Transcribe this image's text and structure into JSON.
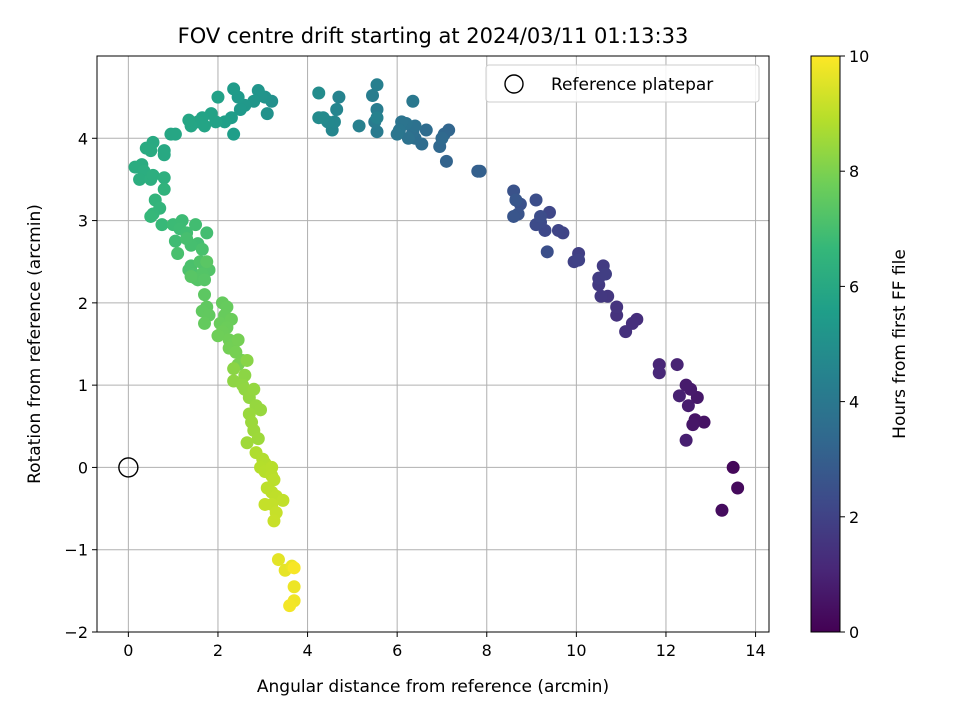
{
  "chart_data": {
    "type": "scatter",
    "title": "FOV centre drift starting at 2024/03/11 01:13:33",
    "xlabel": "Angular distance from reference (arcmin)",
    "ylabel": "Rotation from reference (arcmin)",
    "xlim": [
      -0.7,
      14.3
    ],
    "ylim": [
      -2.0,
      5.0
    ],
    "xticks": [
      0,
      2,
      4,
      6,
      8,
      10,
      12,
      14
    ],
    "yticks": [
      -2,
      -1,
      0,
      1,
      2,
      3,
      4
    ],
    "grid": true,
    "legend": {
      "position": "top-right",
      "entries": [
        "Reference platepar"
      ]
    },
    "reference_point": {
      "label": "Reference platepar",
      "x": 0,
      "y": 0
    },
    "colorbar": {
      "label": "Hours from first FF file",
      "min": 0,
      "max": 10,
      "ticks": [
        0,
        2,
        4,
        6,
        8,
        10
      ],
      "colormap": "viridis",
      "stops": [
        "#440154",
        "#482878",
        "#3e4989",
        "#31688e",
        "#26828e",
        "#1f9e89",
        "#35b779",
        "#6ece58",
        "#b5de2b",
        "#fde725"
      ]
    },
    "series": [
      {
        "points": [
          [
            13.5,
            0.0,
            0.2
          ],
          [
            13.6,
            -0.25,
            0.25
          ],
          [
            13.25,
            -0.52,
            0.3
          ],
          [
            12.85,
            0.55,
            0.5
          ],
          [
            12.65,
            0.58,
            0.55
          ],
          [
            12.6,
            0.52,
            0.6
          ],
          [
            12.7,
            0.85,
            0.65
          ],
          [
            12.55,
            0.95,
            0.7
          ],
          [
            12.45,
            1.0,
            0.75
          ],
          [
            12.5,
            0.75,
            0.8
          ],
          [
            12.45,
            0.33,
            0.85
          ],
          [
            12.3,
            0.87,
            0.9
          ],
          [
            12.25,
            1.25,
            1.0
          ],
          [
            11.85,
            1.25,
            1.05
          ],
          [
            11.85,
            1.15,
            1.1
          ],
          [
            11.35,
            1.8,
            1.3
          ],
          [
            11.25,
            1.75,
            1.35
          ],
          [
            11.1,
            1.65,
            1.4
          ],
          [
            10.9,
            1.85,
            1.45
          ],
          [
            10.9,
            1.95,
            1.5
          ],
          [
            10.7,
            2.08,
            1.6
          ],
          [
            10.55,
            2.08,
            1.65
          ],
          [
            10.5,
            2.22,
            1.7
          ],
          [
            10.6,
            2.45,
            1.75
          ],
          [
            10.5,
            2.3,
            1.8
          ],
          [
            10.65,
            2.35,
            1.85
          ],
          [
            10.05,
            2.6,
            1.9
          ],
          [
            9.95,
            2.5,
            1.95
          ],
          [
            10.05,
            2.52,
            2.0
          ],
          [
            9.7,
            2.85,
            2.05
          ],
          [
            9.6,
            2.88,
            2.1
          ],
          [
            9.4,
            3.1,
            2.15
          ],
          [
            9.3,
            2.88,
            2.2
          ],
          [
            9.2,
            2.98,
            2.25
          ],
          [
            9.1,
            2.95,
            2.3
          ],
          [
            9.2,
            3.05,
            2.35
          ],
          [
            9.1,
            3.25,
            2.4
          ],
          [
            9.35,
            2.62,
            2.45
          ],
          [
            8.75,
            3.2,
            2.5
          ],
          [
            8.6,
            3.36,
            2.55
          ],
          [
            8.7,
            3.08,
            2.6
          ],
          [
            8.6,
            3.05,
            2.65
          ],
          [
            8.65,
            3.25,
            2.7
          ],
          [
            7.8,
            3.6,
            3.0
          ],
          [
            7.85,
            3.6,
            3.05
          ],
          [
            7.1,
            3.72,
            3.2
          ],
          [
            7.15,
            4.1,
            3.25
          ],
          [
            7.05,
            4.05,
            3.3
          ],
          [
            6.95,
            3.9,
            3.35
          ],
          [
            7.0,
            4.0,
            3.4
          ],
          [
            6.65,
            4.1,
            3.5
          ],
          [
            6.55,
            3.93,
            3.55
          ],
          [
            6.4,
            4.0,
            3.6
          ],
          [
            6.35,
            4.08,
            3.65
          ],
          [
            6.4,
            4.15,
            3.7
          ],
          [
            6.25,
            4.0,
            3.75
          ],
          [
            6.2,
            4.18,
            3.8
          ],
          [
            6.1,
            4.2,
            3.85
          ],
          [
            6.05,
            4.1,
            3.9
          ],
          [
            6.0,
            4.05,
            3.95
          ],
          [
            6.35,
            4.45,
            4.0
          ],
          [
            5.55,
            4.08,
            4.1
          ],
          [
            5.5,
            4.2,
            4.15
          ],
          [
            5.55,
            4.35,
            4.2
          ],
          [
            5.45,
            4.52,
            4.25
          ],
          [
            5.55,
            4.65,
            4.3
          ],
          [
            5.15,
            4.15,
            4.35
          ],
          [
            5.55,
            4.25,
            4.4
          ],
          [
            4.7,
            4.5,
            4.5
          ],
          [
            4.65,
            4.35,
            4.55
          ],
          [
            4.55,
            4.1,
            4.6
          ],
          [
            4.6,
            4.2,
            4.65
          ],
          [
            4.45,
            4.2,
            4.7
          ],
          [
            4.35,
            4.25,
            4.75
          ],
          [
            4.25,
            4.25,
            4.8
          ],
          [
            4.25,
            4.55,
            4.85
          ],
          [
            3.2,
            4.45,
            5.0
          ],
          [
            3.1,
            4.3,
            5.05
          ],
          [
            3.05,
            4.5,
            5.1
          ],
          [
            2.95,
            4.52,
            5.15
          ],
          [
            2.9,
            4.58,
            5.2
          ],
          [
            2.8,
            4.45,
            5.25
          ],
          [
            2.6,
            4.4,
            5.3
          ],
          [
            2.5,
            4.35,
            5.35
          ],
          [
            2.45,
            4.5,
            5.4
          ],
          [
            2.35,
            4.6,
            5.45
          ],
          [
            2.3,
            4.25,
            5.5
          ],
          [
            2.35,
            4.05,
            5.55
          ],
          [
            2.15,
            4.2,
            5.6
          ],
          [
            2.0,
            4.5,
            5.7
          ],
          [
            1.95,
            4.2,
            5.72
          ],
          [
            1.85,
            4.3,
            5.75
          ],
          [
            1.65,
            4.25,
            5.78
          ],
          [
            1.55,
            4.2,
            5.8
          ],
          [
            1.7,
            4.15,
            5.82
          ],
          [
            1.4,
            4.15,
            5.85
          ],
          [
            1.35,
            4.22,
            5.88
          ],
          [
            1.05,
            4.05,
            5.9
          ],
          [
            0.95,
            4.05,
            5.92
          ],
          [
            0.8,
            3.85,
            6.0
          ],
          [
            0.8,
            3.8,
            6.02
          ],
          [
            0.55,
            3.95,
            6.05
          ],
          [
            0.4,
            3.88,
            6.08
          ],
          [
            0.5,
            3.85,
            6.1
          ],
          [
            0.3,
            3.68,
            6.15
          ],
          [
            0.15,
            3.65,
            6.18
          ],
          [
            0.35,
            3.6,
            6.2
          ],
          [
            0.25,
            3.5,
            6.22
          ],
          [
            0.5,
            3.5,
            6.25
          ],
          [
            0.55,
            3.55,
            6.28
          ],
          [
            0.8,
            3.52,
            6.3
          ],
          [
            0.8,
            3.38,
            6.45
          ],
          [
            0.6,
            3.25,
            6.5
          ],
          [
            0.7,
            3.15,
            6.55
          ],
          [
            0.55,
            3.08,
            6.6
          ],
          [
            0.5,
            3.05,
            6.65
          ],
          [
            0.75,
            2.95,
            6.7
          ],
          [
            1.0,
            2.95,
            6.8
          ],
          [
            1.2,
            3.0,
            6.82
          ],
          [
            1.15,
            2.9,
            6.85
          ],
          [
            1.05,
            2.75,
            6.88
          ],
          [
            1.3,
            2.85,
            6.9
          ],
          [
            1.5,
            2.95,
            6.92
          ],
          [
            1.75,
            2.85,
            6.95
          ],
          [
            1.55,
            2.72,
            6.98
          ],
          [
            1.4,
            2.7,
            7.0
          ],
          [
            1.3,
            2.78,
            7.02
          ],
          [
            1.1,
            2.6,
            7.05
          ],
          [
            1.65,
            2.65,
            7.08
          ],
          [
            1.4,
            2.45,
            7.1
          ],
          [
            1.35,
            2.4,
            7.12
          ],
          [
            1.45,
            2.35,
            7.15
          ],
          [
            1.5,
            2.3,
            7.18
          ],
          [
            1.6,
            2.5,
            7.2
          ],
          [
            1.7,
            2.45,
            7.22
          ],
          [
            1.8,
            2.4,
            7.25
          ],
          [
            1.65,
            2.35,
            7.28
          ],
          [
            1.55,
            2.28,
            7.3
          ],
          [
            1.7,
            2.28,
            7.32
          ],
          [
            1.4,
            2.32,
            7.35
          ],
          [
            1.75,
            2.5,
            7.38
          ],
          [
            1.7,
            2.1,
            7.45
          ],
          [
            1.75,
            1.95,
            7.5
          ],
          [
            1.65,
            1.9,
            7.52
          ],
          [
            1.8,
            1.85,
            7.55
          ],
          [
            1.7,
            1.75,
            7.58
          ],
          [
            2.1,
            2.0,
            7.6
          ],
          [
            2.2,
            1.95,
            7.62
          ],
          [
            2.15,
            1.85,
            7.65
          ],
          [
            2.05,
            1.75,
            7.68
          ],
          [
            2.3,
            1.8,
            7.7
          ],
          [
            2.2,
            1.7,
            7.72
          ],
          [
            2.1,
            1.65,
            7.75
          ],
          [
            2.0,
            1.6,
            7.78
          ],
          [
            2.25,
            1.55,
            7.8
          ],
          [
            2.35,
            1.5,
            7.82
          ],
          [
            2.25,
            1.45,
            7.85
          ],
          [
            2.45,
            1.55,
            7.88
          ],
          [
            2.4,
            1.4,
            7.9
          ],
          [
            2.55,
            1.3,
            7.92
          ],
          [
            2.45,
            1.25,
            7.95
          ],
          [
            2.65,
            1.3,
            8.2
          ],
          [
            2.35,
            1.2,
            8.22
          ],
          [
            2.6,
            1.12,
            8.25
          ],
          [
            2.35,
            1.05,
            8.28
          ],
          [
            2.55,
            1.0,
            8.3
          ],
          [
            2.6,
            0.95,
            8.32
          ],
          [
            2.7,
            0.85,
            8.35
          ],
          [
            2.8,
            0.95,
            8.38
          ],
          [
            2.85,
            0.75,
            8.4
          ],
          [
            2.95,
            0.7,
            8.42
          ],
          [
            2.7,
            0.65,
            8.45
          ],
          [
            2.75,
            0.55,
            8.48
          ],
          [
            2.8,
            0.45,
            8.5
          ],
          [
            2.9,
            0.35,
            8.52
          ],
          [
            2.65,
            0.3,
            8.55
          ],
          [
            2.85,
            0.18,
            8.8
          ],
          [
            3.0,
            0.1,
            8.82
          ],
          [
            3.05,
            0.05,
            8.85
          ],
          [
            2.95,
            0.0,
            8.88
          ],
          [
            3.05,
            -0.05,
            8.9
          ],
          [
            3.2,
            0.0,
            8.92
          ],
          [
            3.2,
            -0.1,
            8.95
          ],
          [
            3.25,
            -0.15,
            8.98
          ],
          [
            3.1,
            -0.25,
            9.0
          ],
          [
            3.2,
            -0.3,
            9.02
          ],
          [
            3.3,
            -0.35,
            9.05
          ],
          [
            3.45,
            -0.4,
            9.08
          ],
          [
            3.2,
            -0.45,
            9.1
          ],
          [
            3.05,
            -0.45,
            9.12
          ],
          [
            3.3,
            -0.55,
            9.15
          ],
          [
            3.25,
            -0.65,
            9.18
          ],
          [
            3.35,
            -1.12,
            9.6
          ],
          [
            3.5,
            -1.25,
            9.65
          ],
          [
            3.65,
            -1.2,
            9.7
          ],
          [
            3.7,
            -1.45,
            9.75
          ],
          [
            3.7,
            -1.62,
            9.8
          ],
          [
            3.6,
            -1.68,
            9.85
          ],
          [
            3.7,
            -1.22,
            9.9
          ]
        ]
      }
    ]
  }
}
